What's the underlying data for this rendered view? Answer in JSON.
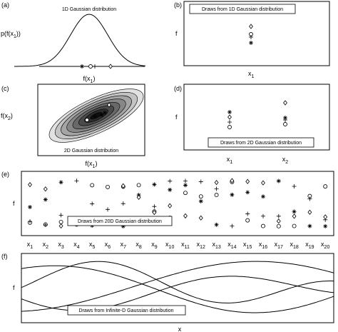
{
  "panels": {
    "a": {
      "tag": "(a)",
      "title": "1D Gaussian distribution",
      "ylabel": [
        "p(f(x",
        "1",
        "))"
      ],
      "xlabel": [
        "f(x",
        "1",
        ")"
      ]
    },
    "b": {
      "tag": "(b)",
      "title": "Draws from 1D Gaussian distribution",
      "ylabel": "f",
      "xlabel": [
        "x",
        "1"
      ]
    },
    "c": {
      "tag": "(c)",
      "title": "2D Gaussian distribution",
      "ylabel": [
        "f(x",
        "2",
        ")"
      ],
      "xlabel": [
        "f(x",
        "1",
        ")"
      ]
    },
    "d": {
      "tag": "(d)",
      "title": "Draws from 2D Gaussian distribution",
      "ylabel": "f",
      "xlabels": [
        [
          "x",
          "1"
        ],
        [
          "x",
          "2"
        ]
      ]
    },
    "e": {
      "tag": "(e)",
      "title": "Draws from 20D Gaussian distribution",
      "ylabel": "f",
      "xlabels": [
        [
          "x",
          "1"
        ],
        [
          "x",
          "2"
        ],
        [
          "x",
          "3"
        ],
        [
          "x",
          "4"
        ],
        [
          "x",
          "5"
        ],
        [
          "x",
          "6"
        ],
        [
          "x",
          "7"
        ],
        [
          "x",
          "8"
        ],
        [
          "x",
          "9"
        ],
        [
          "x",
          "10"
        ],
        [
          "x",
          "11"
        ],
        [
          "x",
          "12"
        ],
        [
          "x",
          "13"
        ],
        [
          "x",
          "14"
        ],
        [
          "x",
          "15"
        ],
        [
          "x",
          "16"
        ],
        [
          "x",
          "17"
        ],
        [
          "x",
          "18"
        ],
        [
          "x",
          "19"
        ],
        [
          "x",
          "20"
        ]
      ]
    },
    "f": {
      "tag": "(f)",
      "title": "Draws from Infinite-D Gaussian distribution",
      "ylabel": "f",
      "xlabel": "x"
    }
  }
}
